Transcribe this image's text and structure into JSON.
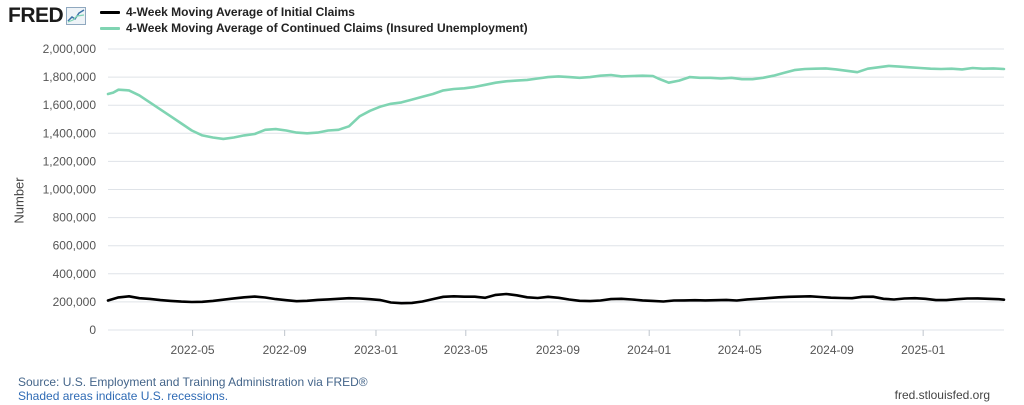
{
  "header": {
    "logo_text": "FRED",
    "logo_icon": "line-graph-icon"
  },
  "footer": {
    "source": "Source: U.S. Employment and Training Administration via FRED®",
    "shaded": "Shaded areas indicate U.S. recessions.",
    "url": "fred.stlouisfed.org"
  },
  "chart_data": {
    "type": "line",
    "title": "",
    "xlabel": "",
    "ylabel": "Number",
    "ylim": [
      0,
      2000000
    ],
    "yticks": [
      0,
      200000,
      400000,
      600000,
      800000,
      1000000,
      1200000,
      1400000,
      1600000,
      1800000,
      2000000
    ],
    "ytick_labels": [
      "0",
      "200,000",
      "400,000",
      "600,000",
      "800,000",
      "1,000,000",
      "1,200,000",
      "1,400,000",
      "1,600,000",
      "1,800,000",
      "2,000,000"
    ],
    "xlim": [
      "2022-01-08",
      "2025-04-19"
    ],
    "xticks": [
      "2022-05-01",
      "2022-09-01",
      "2023-01-01",
      "2023-05-01",
      "2023-09-01",
      "2024-01-01",
      "2024-05-01",
      "2024-09-01",
      "2025-01-01"
    ],
    "xtick_labels": [
      "2022-05",
      "2022-09",
      "2023-01",
      "2023-05",
      "2023-09",
      "2024-01",
      "2024-05",
      "2024-09",
      "2025-01"
    ],
    "grid": "horizontal",
    "legend_position": "top-left",
    "series": [
      {
        "name": "4-Week Moving Average of Initial Claims",
        "color": "#000000",
        "points": [
          [
            "2022-01-08",
            210000
          ],
          [
            "2022-01-22",
            232000
          ],
          [
            "2022-02-05",
            240000
          ],
          [
            "2022-02-19",
            226000
          ],
          [
            "2022-03-05",
            221000
          ],
          [
            "2022-03-19",
            213000
          ],
          [
            "2022-04-02",
            207000
          ],
          [
            "2022-04-16",
            202000
          ],
          [
            "2022-04-30",
            199000
          ],
          [
            "2022-05-14",
            201000
          ],
          [
            "2022-05-28",
            207000
          ],
          [
            "2022-06-11",
            216000
          ],
          [
            "2022-06-25",
            225000
          ],
          [
            "2022-07-09",
            233000
          ],
          [
            "2022-07-23",
            238000
          ],
          [
            "2022-08-06",
            231000
          ],
          [
            "2022-08-20",
            220000
          ],
          [
            "2022-09-03",
            212000
          ],
          [
            "2022-09-17",
            205000
          ],
          [
            "2022-10-01",
            208000
          ],
          [
            "2022-10-15",
            214000
          ],
          [
            "2022-10-29",
            218000
          ],
          [
            "2022-11-12",
            222000
          ],
          [
            "2022-11-26",
            226000
          ],
          [
            "2022-12-10",
            224000
          ],
          [
            "2022-12-24",
            219000
          ],
          [
            "2023-01-07",
            213000
          ],
          [
            "2023-01-21",
            196000
          ],
          [
            "2023-02-04",
            191000
          ],
          [
            "2023-02-18",
            193000
          ],
          [
            "2023-03-04",
            203000
          ],
          [
            "2023-03-18",
            220000
          ],
          [
            "2023-04-01",
            236000
          ],
          [
            "2023-04-15",
            240000
          ],
          [
            "2023-04-29",
            237000
          ],
          [
            "2023-05-13",
            237000
          ],
          [
            "2023-05-27",
            229000
          ],
          [
            "2023-06-10",
            250000
          ],
          [
            "2023-06-24",
            256000
          ],
          [
            "2023-07-08",
            247000
          ],
          [
            "2023-07-22",
            233000
          ],
          [
            "2023-08-05",
            228000
          ],
          [
            "2023-08-19",
            236000
          ],
          [
            "2023-09-02",
            229000
          ],
          [
            "2023-09-16",
            217000
          ],
          [
            "2023-09-30",
            208000
          ],
          [
            "2023-10-14",
            206000
          ],
          [
            "2023-10-28",
            210000
          ],
          [
            "2023-11-11",
            220000
          ],
          [
            "2023-11-25",
            222000
          ],
          [
            "2023-12-09",
            217000
          ],
          [
            "2023-12-23",
            211000
          ],
          [
            "2024-01-06",
            207000
          ],
          [
            "2024-01-20",
            203000
          ],
          [
            "2024-02-03",
            210000
          ],
          [
            "2024-02-17",
            211000
          ],
          [
            "2024-03-02",
            212000
          ],
          [
            "2024-03-16",
            211000
          ],
          [
            "2024-03-30",
            212000
          ],
          [
            "2024-04-13",
            214000
          ],
          [
            "2024-04-27",
            210000
          ],
          [
            "2024-05-11",
            218000
          ],
          [
            "2024-05-25",
            222000
          ],
          [
            "2024-06-08",
            227000
          ],
          [
            "2024-06-22",
            233000
          ],
          [
            "2024-07-06",
            236000
          ],
          [
            "2024-07-20",
            238000
          ],
          [
            "2024-08-03",
            240000
          ],
          [
            "2024-08-17",
            235000
          ],
          [
            "2024-08-31",
            230000
          ],
          [
            "2024-09-14",
            228000
          ],
          [
            "2024-09-28",
            226000
          ],
          [
            "2024-10-12",
            236000
          ],
          [
            "2024-10-26",
            237000
          ],
          [
            "2024-11-09",
            222000
          ],
          [
            "2024-11-23",
            217000
          ],
          [
            "2024-12-07",
            224000
          ],
          [
            "2024-12-21",
            226000
          ],
          [
            "2025-01-04",
            222000
          ],
          [
            "2025-01-18",
            213000
          ],
          [
            "2025-02-01",
            213000
          ],
          [
            "2025-02-15",
            219000
          ],
          [
            "2025-03-01",
            224000
          ],
          [
            "2025-03-15",
            225000
          ],
          [
            "2025-03-29",
            222000
          ],
          [
            "2025-04-12",
            219000
          ],
          [
            "2025-04-19",
            216000
          ]
        ]
      },
      {
        "name": "4-Week Moving Average of Continued Claims (Insured Unemployment)",
        "color": "#7fd4b2",
        "points": [
          [
            "2022-01-08",
            1680000
          ],
          [
            "2022-01-15",
            1690000
          ],
          [
            "2022-01-22",
            1710000
          ],
          [
            "2022-02-05",
            1705000
          ],
          [
            "2022-02-19",
            1670000
          ],
          [
            "2022-03-05",
            1620000
          ],
          [
            "2022-03-19",
            1570000
          ],
          [
            "2022-04-02",
            1520000
          ],
          [
            "2022-04-16",
            1470000
          ],
          [
            "2022-04-30",
            1420000
          ],
          [
            "2022-05-14",
            1385000
          ],
          [
            "2022-05-28",
            1370000
          ],
          [
            "2022-06-11",
            1360000
          ],
          [
            "2022-06-25",
            1370000
          ],
          [
            "2022-07-09",
            1385000
          ],
          [
            "2022-07-23",
            1395000
          ],
          [
            "2022-08-06",
            1425000
          ],
          [
            "2022-08-20",
            1430000
          ],
          [
            "2022-09-03",
            1420000
          ],
          [
            "2022-09-17",
            1405000
          ],
          [
            "2022-10-01",
            1400000
          ],
          [
            "2022-10-15",
            1405000
          ],
          [
            "2022-10-29",
            1420000
          ],
          [
            "2022-11-12",
            1425000
          ],
          [
            "2022-11-26",
            1450000
          ],
          [
            "2022-12-10",
            1520000
          ],
          [
            "2022-12-24",
            1560000
          ],
          [
            "2023-01-07",
            1590000
          ],
          [
            "2023-01-21",
            1610000
          ],
          [
            "2023-02-04",
            1620000
          ],
          [
            "2023-02-18",
            1640000
          ],
          [
            "2023-03-04",
            1660000
          ],
          [
            "2023-03-18",
            1680000
          ],
          [
            "2023-04-01",
            1705000
          ],
          [
            "2023-04-15",
            1715000
          ],
          [
            "2023-04-29",
            1720000
          ],
          [
            "2023-05-13",
            1730000
          ],
          [
            "2023-05-27",
            1745000
          ],
          [
            "2023-06-10",
            1760000
          ],
          [
            "2023-06-24",
            1770000
          ],
          [
            "2023-07-08",
            1775000
          ],
          [
            "2023-07-22",
            1780000
          ],
          [
            "2023-08-05",
            1790000
          ],
          [
            "2023-08-19",
            1800000
          ],
          [
            "2023-09-02",
            1805000
          ],
          [
            "2023-09-16",
            1800000
          ],
          [
            "2023-09-30",
            1795000
          ],
          [
            "2023-10-14",
            1800000
          ],
          [
            "2023-10-28",
            1810000
          ],
          [
            "2023-11-11",
            1815000
          ],
          [
            "2023-11-25",
            1805000
          ],
          [
            "2023-12-09",
            1808000
          ],
          [
            "2023-12-23",
            1810000
          ],
          [
            "2024-01-06",
            1808000
          ],
          [
            "2024-01-13",
            1790000
          ],
          [
            "2024-01-27",
            1760000
          ],
          [
            "2024-02-10",
            1775000
          ],
          [
            "2024-02-24",
            1800000
          ],
          [
            "2024-03-09",
            1795000
          ],
          [
            "2024-03-23",
            1795000
          ],
          [
            "2024-04-06",
            1790000
          ],
          [
            "2024-04-20",
            1795000
          ],
          [
            "2024-05-04",
            1785000
          ],
          [
            "2024-05-18",
            1785000
          ],
          [
            "2024-06-01",
            1795000
          ],
          [
            "2024-06-15",
            1810000
          ],
          [
            "2024-06-29",
            1830000
          ],
          [
            "2024-07-13",
            1850000
          ],
          [
            "2024-07-27",
            1858000
          ],
          [
            "2024-08-10",
            1860000
          ],
          [
            "2024-08-24",
            1862000
          ],
          [
            "2024-09-07",
            1855000
          ],
          [
            "2024-09-21",
            1845000
          ],
          [
            "2024-10-05",
            1835000
          ],
          [
            "2024-10-19",
            1860000
          ],
          [
            "2024-11-02",
            1870000
          ],
          [
            "2024-11-16",
            1880000
          ],
          [
            "2024-11-30",
            1875000
          ],
          [
            "2024-12-14",
            1870000
          ],
          [
            "2024-12-28",
            1865000
          ],
          [
            "2025-01-11",
            1860000
          ],
          [
            "2025-01-25",
            1858000
          ],
          [
            "2025-02-08",
            1860000
          ],
          [
            "2025-02-22",
            1855000
          ],
          [
            "2025-03-08",
            1865000
          ],
          [
            "2025-03-22",
            1860000
          ],
          [
            "2025-04-05",
            1862000
          ],
          [
            "2025-04-19",
            1858000
          ]
        ]
      }
    ]
  }
}
